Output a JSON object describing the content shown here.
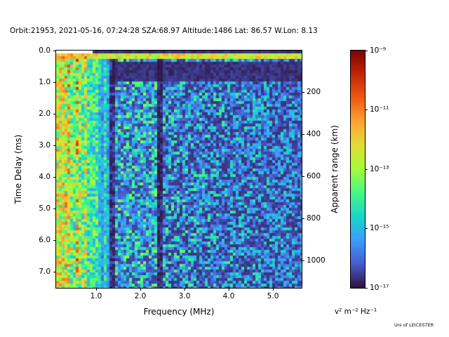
{
  "chart_data": {
    "type": "heatmap",
    "title": "Orbit:21953, 2021-05-16, 07:24:28 SZA:68.97 Altitude:1486 Lat: 86.57 W.Lon: 8.13",
    "xlabel": "Frequency (MHz)",
    "ylabel": "Time Delay (ms)",
    "y2label": "Apparent range (km)",
    "x_range_mhz": [
      0.095,
      5.65
    ],
    "y_range_ms": [
      0.0,
      7.5
    ],
    "y2_range_km": [
      0,
      1127
    ],
    "x_ticks": {
      "values": [
        1.0,
        2.0,
        3.0,
        4.0,
        5.0
      ],
      "labels": [
        "1.0",
        "2.0",
        "3.0",
        "4.0",
        "5.0"
      ]
    },
    "y_ticks": {
      "values": [
        0,
        1,
        2,
        3,
        4,
        5,
        6,
        7
      ],
      "labels": [
        "0.0",
        "1.0",
        "2.0",
        "3.0",
        "4.0",
        "5.0",
        "6.0",
        "7.0"
      ]
    },
    "y2_ticks": {
      "values": [
        200,
        400,
        600,
        800,
        1000
      ],
      "labels": [
        "200",
        "400",
        "600",
        "800",
        "1000"
      ]
    },
    "grid": false,
    "colorbar": {
      "label": "v² m⁻² Hz⁻¹",
      "scale": "log",
      "min": "1e-17",
      "max": "1e-9",
      "ticks": [
        {
          "frac_from_top": 0.0,
          "label": "10⁻⁹"
        },
        {
          "frac_from_top": 0.25,
          "label": "10⁻¹¹"
        },
        {
          "frac_from_top": 0.5,
          "label": "10⁻¹³"
        },
        {
          "frac_from_top": 0.75,
          "label": "10⁻¹⁵"
        },
        {
          "frac_from_top": 1.0,
          "label": "10⁻¹⁷"
        }
      ],
      "colormap": "turbo",
      "colormap_stops": [
        "#30123b",
        "#455bcd",
        "#3e9bfe",
        "#18d6cb",
        "#46f884",
        "#a2fc3b",
        "#e1dd37",
        "#fea331",
        "#ef5a11",
        "#c42503",
        "#7a0403"
      ]
    },
    "features": {
      "surface_echo_delay_ms": [
        0.13,
        0.28
      ],
      "bright_low_frequency_region_mhz": [
        0.095,
        1.3
      ],
      "dark_vertical_bands_mhz": [
        [
          1.3,
          1.43
        ],
        [
          2.36,
          2.5
        ]
      ],
      "dark_region_above_first_echo": {
        "f_min_mhz": 1.38,
        "delay_ms": [
          0.34,
          0.95
        ]
      },
      "no_data_top_left": {
        "f_max_mhz": 0.9,
        "delay_max_ms": 0.12
      },
      "background": "speckled ionospheric noise: dark navy background with blue/cyan points, bright cyan-green vertical streaks below 1.3 MHz, intensity fading toward high frequency"
    },
    "credit": "Uni of LEICESTER"
  },
  "credit": "Uni of LEICESTER"
}
